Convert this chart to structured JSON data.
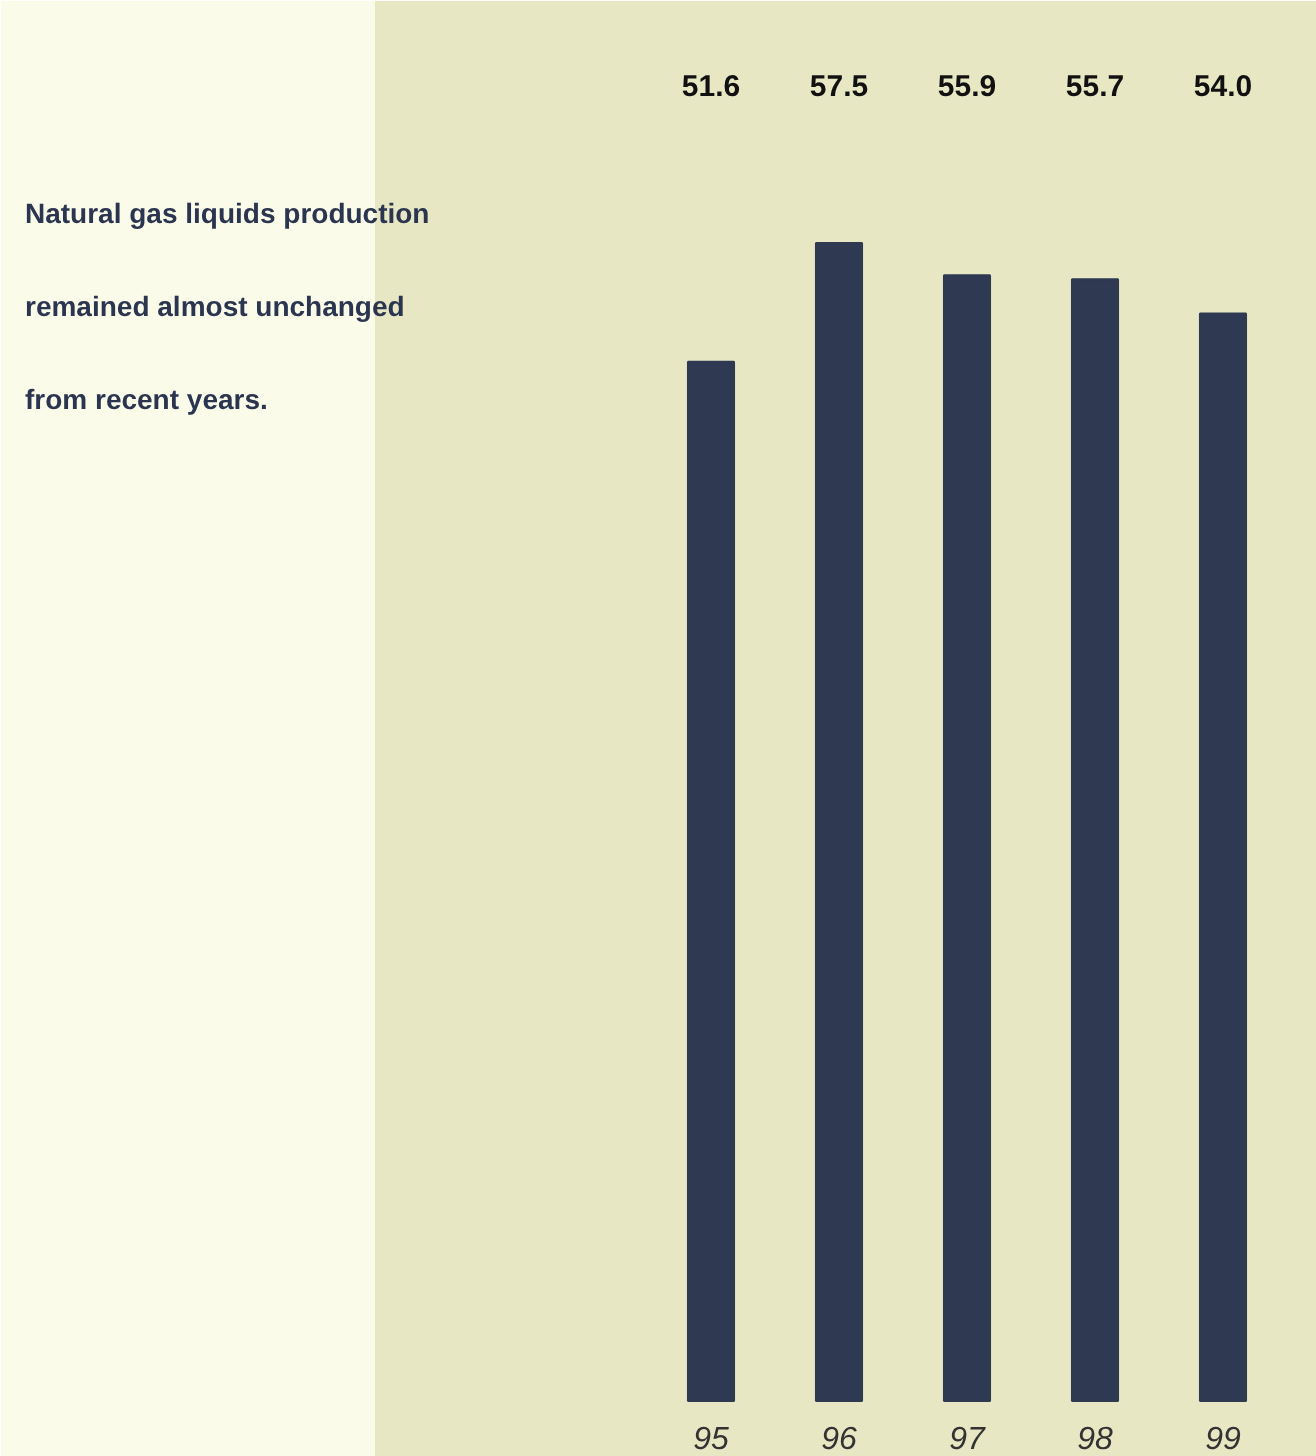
{
  "chart_data": {
    "type": "bar",
    "categories": [
      "95",
      "96",
      "97",
      "98",
      "99"
    ],
    "values": [
      51.6,
      57.5,
      55.9,
      55.7,
      54.0
    ],
    "color": "#2f3a52",
    "value_labels": [
      "51.6",
      "57.5",
      "55.9",
      "55.7",
      "54.0"
    ],
    "annotations": [
      "Natural gas liquids production\nremained almost unchanged\nfrom recent years."
    ]
  }
}
